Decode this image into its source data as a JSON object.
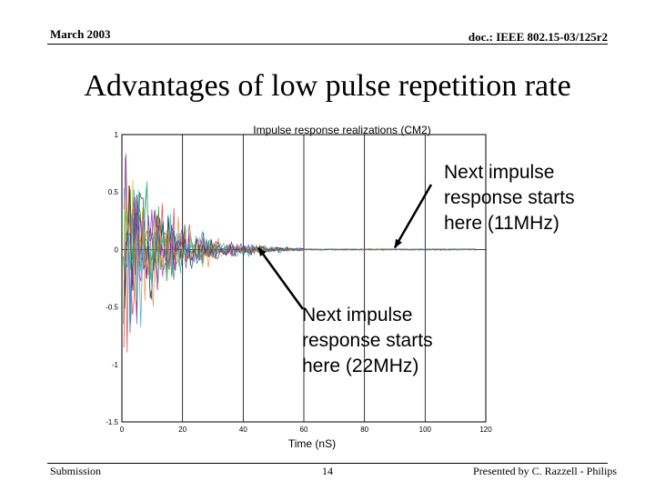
{
  "header": {
    "date": "March 2003",
    "doc": "doc.: IEEE 802.15-03/125r2"
  },
  "title": "Advantages of low pulse repetition rate",
  "chart_data": {
    "type": "line",
    "title": "Impulse response realizations (CM2)",
    "xlabel": "Time (nS)",
    "ylabel": "",
    "xlim": [
      0,
      120
    ],
    "ylim": [
      -1.5,
      1
    ],
    "xticks": [
      "0",
      "20",
      "40",
      "60",
      "80",
      "100",
      "120"
    ],
    "yticks": [
      "1",
      "0.5",
      "0",
      "-0.5",
      "-1",
      "-1.5"
    ],
    "description_series": "Many overlaid multipath impulse response realizations decaying toward 0 by about 50 ns",
    "envelope": {
      "initial_amplitude": 1.0,
      "decay_ns": 14,
      "signal_end_ns": 60,
      "data_end_ns": 117
    },
    "series_colors": [
      "#1f3fbf",
      "#1a8a1a",
      "#d62020",
      "#17a2b8",
      "#b319b3",
      "#c8b400",
      "#2b2b2b",
      "#e67e22",
      "#6a1fb3",
      "#1abc9c"
    ],
    "gridlines": {
      "x": [
        20,
        40,
        60,
        80,
        100
      ],
      "y": [
        0
      ]
    }
  },
  "annotations": [
    {
      "text": "Next impulse\nresponse starts\nhere (11MHz)",
      "target_x_ns": 90,
      "target_y": 0
    },
    {
      "text": "Next impulse\nresponse starts\nhere (22MHz)",
      "target_x_ns": 45,
      "target_y": 0
    }
  ],
  "footer": {
    "left": "Submission",
    "page": "14",
    "right": "Presented by C. Razzell - Philips"
  }
}
